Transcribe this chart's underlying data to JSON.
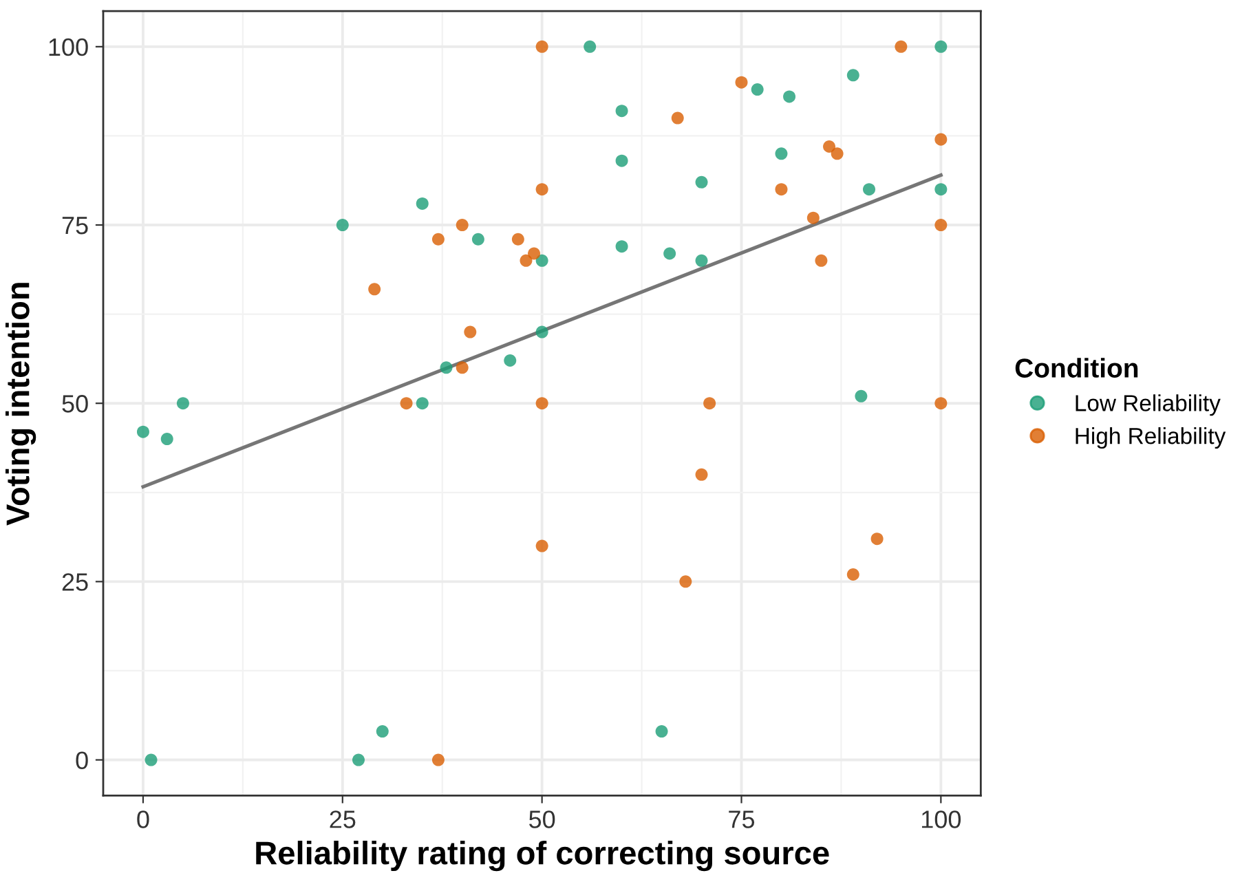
{
  "chart_data": {
    "type": "scatter",
    "xlabel": "Reliability rating of correcting source",
    "ylabel": "Voting intention",
    "legend_title": "Condition",
    "series": [
      {
        "name": "Low Reliability",
        "color": "#1b9e77",
        "marker": "circle",
        "x": [
          0,
          3,
          5,
          1,
          27,
          30,
          25,
          35,
          42,
          38,
          35,
          46,
          50,
          50,
          56,
          60,
          60,
          60,
          66,
          70,
          70,
          65,
          77,
          81,
          80,
          89,
          91,
          90,
          100,
          100
        ],
        "values": [
          46,
          45,
          50,
          0,
          0,
          4,
          75,
          78,
          73,
          55,
          50,
          56,
          60,
          70,
          100,
          91,
          84,
          72,
          71,
          81,
          70,
          4,
          94,
          93,
          85,
          96,
          80,
          51,
          100,
          80
        ]
      },
      {
        "name": "High Reliability",
        "color": "#d95f02",
        "marker": "circle",
        "x": [
          29,
          33,
          37,
          40,
          41,
          40,
          47,
          48,
          49,
          50,
          50,
          50,
          50,
          37,
          67,
          75,
          80,
          84,
          85,
          86,
          87,
          95,
          100,
          100,
          100,
          71,
          70,
          68,
          89,
          92
        ],
        "values": [
          66,
          50,
          73,
          75,
          60,
          55,
          73,
          70,
          71,
          100,
          80,
          50,
          30,
          0,
          90,
          95,
          80,
          76,
          70,
          86,
          85,
          100,
          87,
          75,
          50,
          50,
          40,
          25,
          26,
          31
        ]
      },
      {
        "type": "line",
        "color": "#767676",
        "marker": "none",
        "x": [
          0,
          100
        ],
        "values": [
          38.3,
          82
        ]
      }
    ],
    "xlim": [
      -5,
      105
    ],
    "ylim": [
      -5,
      105
    ],
    "xticks": [
      0,
      25,
      50,
      75,
      100
    ],
    "yticks": [
      0,
      25,
      50,
      75,
      100
    ],
    "grid": true,
    "legend": "right"
  }
}
